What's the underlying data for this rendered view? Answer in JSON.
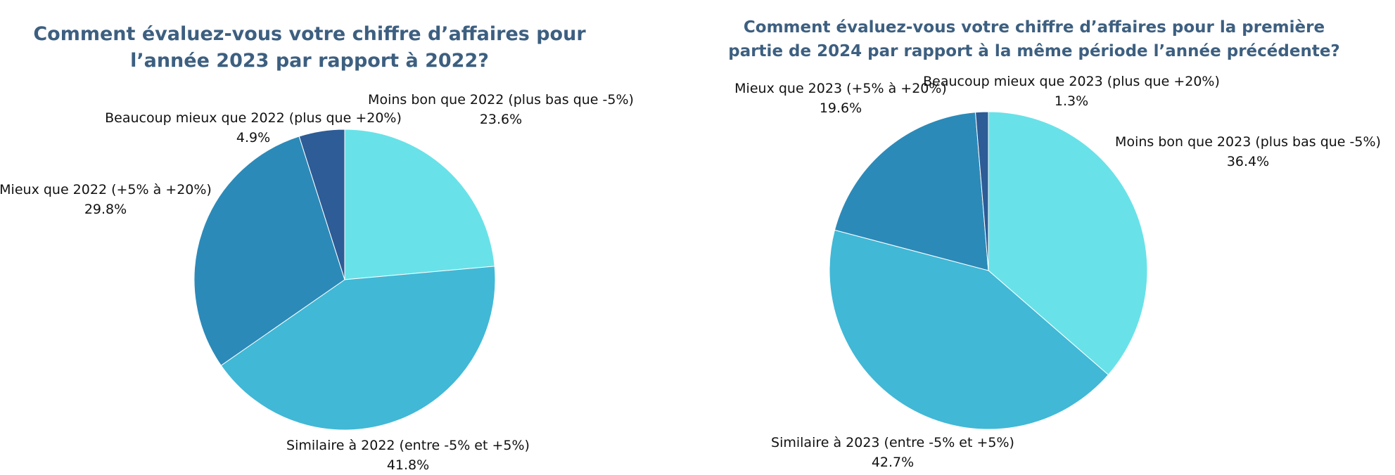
{
  "chart_data": [
    {
      "type": "pie",
      "title": "Comment évaluez-vous votre chiffre d’affaires pour l’année 2023 par rapport à 2022?",
      "slices": [
        {
          "label": "Moins bon que 2022 (plus bas que -5%)",
          "value": 23.6,
          "value_label": "23.6%",
          "color": "#68e2e8"
        },
        {
          "label": "Similaire à 2022 (entre -5% et +5%)",
          "value": 41.8,
          "value_label": "41.8%",
          "color": "#41b8d6"
        },
        {
          "label": "Mieux que 2022 (+5% à +20%)",
          "value": 29.8,
          "value_label": "29.8%",
          "color": "#2c8ab8"
        },
        {
          "label": "Beaucoup mieux que 2022 (plus que +20%)",
          "value": 4.9,
          "value_label": "4.9%",
          "color": "#2d5c96"
        }
      ]
    },
    {
      "type": "pie",
      "title": "Comment évaluez-vous votre chiffre d’affaires pour la première partie de 2024 par rapport à la même période l’année précédente?",
      "slices": [
        {
          "label": "Moins bon que 2023 (plus bas que -5%)",
          "value": 36.4,
          "value_label": "36.4%",
          "color": "#68e2e8"
        },
        {
          "label": "Similaire à 2023 (entre -5% et +5%)",
          "value": 42.7,
          "value_label": "42.7%",
          "color": "#41b8d6"
        },
        {
          "label": "Mieux que 2023 (+5% à +20%)",
          "value": 19.6,
          "value_label": "19.6%",
          "color": "#2c8ab8"
        },
        {
          "label": "Beaucoup mieux que 2023 (plus que  +20%)",
          "value": 1.3,
          "value_label": "1.3%",
          "color": "#2d5c96"
        }
      ]
    }
  ]
}
